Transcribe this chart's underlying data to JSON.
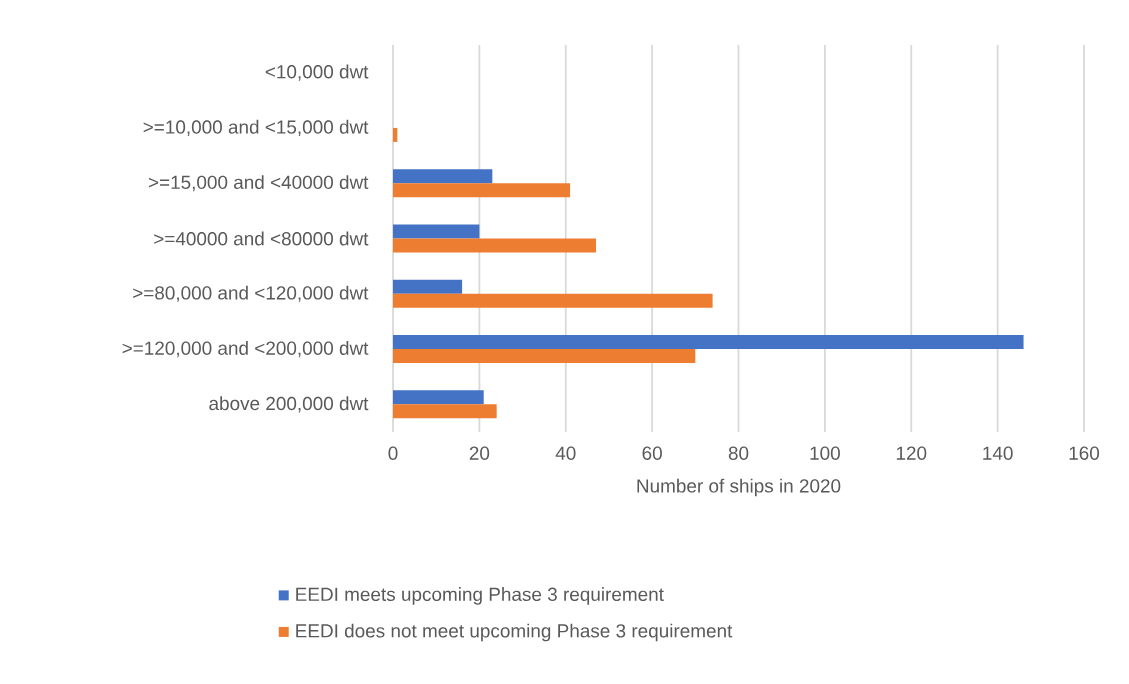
{
  "chart_data": {
    "type": "bar",
    "orientation": "horizontal",
    "xlabel": "Number of ships in 2020",
    "categories": [
      "<10,000 dwt",
      ">=10,000 and <15,000 dwt",
      ">=15,000 and <40000 dwt",
      ">=40000 and <80000 dwt",
      ">=80,000 and <120,000 dwt",
      ">=120,000 and <200,000 dwt",
      "above 200,000 dwt"
    ],
    "series": [
      {
        "name": "EEDI meets upcoming Phase 3 requirement",
        "color": "#4472c4",
        "values": [
          0,
          0,
          23,
          20,
          16,
          146,
          21
        ]
      },
      {
        "name": "EEDI does not meet upcoming Phase 3 requirement",
        "color": "#ed7d31",
        "values": [
          0,
          1,
          41,
          47,
          74,
          70,
          24
        ]
      }
    ],
    "xlim": [
      0,
      160
    ],
    "xticks": [
      0,
      20,
      40,
      60,
      80,
      100,
      120,
      140,
      160
    ],
    "grid": "x",
    "legend": "bottom"
  }
}
